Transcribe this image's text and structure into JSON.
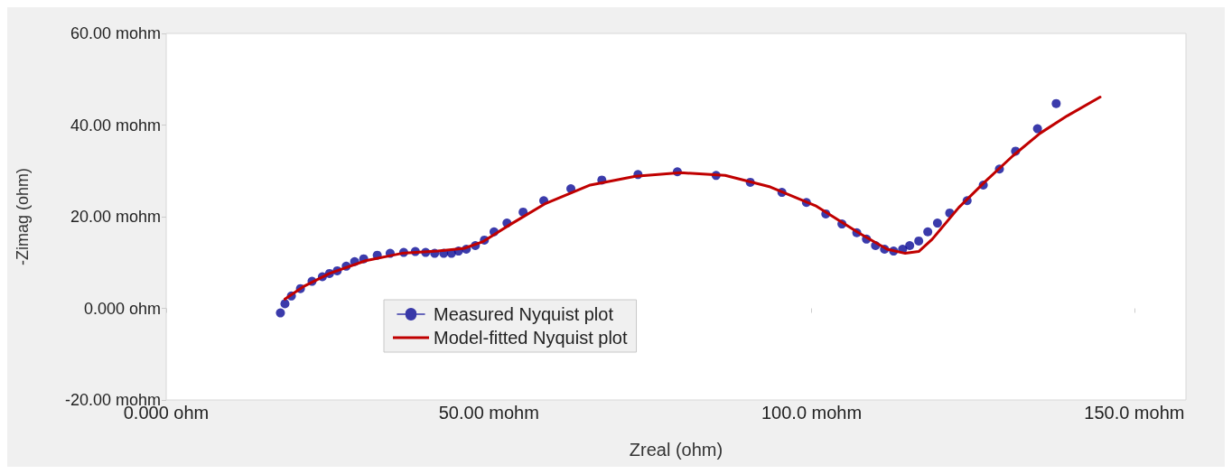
{
  "chart_data": {
    "type": "scatter",
    "xlabel": "Zreal (ohm)",
    "ylabel": "-Zimag (ohm)",
    "xlim": [
      0,
      158
    ],
    "ylim": [
      -20,
      60
    ],
    "xticks": [
      {
        "value": 0,
        "label": "0.000 ohm"
      },
      {
        "value": 50,
        "label": "50.00 mohm"
      },
      {
        "value": 100,
        "label": "100.0 mohm"
      },
      {
        "value": 150,
        "label": "150.0 mohm"
      }
    ],
    "yticks": [
      {
        "value": -20,
        "label": "-20.00 mohm"
      },
      {
        "value": 0,
        "label": "0.000 ohm"
      },
      {
        "value": 20,
        "label": "20.00 mohm"
      },
      {
        "value": 40,
        "label": "40.00 mohm"
      },
      {
        "value": 60,
        "label": "60.00 mohm"
      }
    ],
    "grid": false,
    "legend": "bottom left",
    "series": [
      {
        "name": "Measured Nyquist plot",
        "type": "scatter",
        "marker": "circle",
        "color": "#0a0a96",
        "x": [
          17.7,
          18.4,
          19.4,
          20.8,
          22.6,
          24.2,
          25.3,
          26.5,
          27.9,
          29.2,
          30.6,
          32.7,
          34.7,
          36.8,
          38.6,
          40.2,
          41.6,
          43.0,
          44.2,
          45.3,
          46.5,
          47.9,
          49.3,
          50.8,
          52.8,
          55.3,
          58.5,
          62.7,
          67.5,
          73.1,
          79.2,
          85.2,
          90.5,
          95.4,
          99.2,
          102.2,
          104.7,
          107.0,
          108.5,
          109.9,
          111.3,
          112.7,
          114.1,
          115.2,
          116.6,
          118.0,
          119.5,
          121.4,
          124.1,
          126.6,
          129.1,
          131.6,
          135.0,
          137.9
        ],
        "values": [
          -1.0,
          1.0,
          2.7,
          4.3,
          5.9,
          6.9,
          7.6,
          8.2,
          9.2,
          10.2,
          10.8,
          11.6,
          12.0,
          12.2,
          12.4,
          12.2,
          12.0,
          12.0,
          12.0,
          12.5,
          12.9,
          13.7,
          14.9,
          16.7,
          18.6,
          21.0,
          23.5,
          26.1,
          28.0,
          29.2,
          29.8,
          29.0,
          27.5,
          25.3,
          23.1,
          20.6,
          18.4,
          16.5,
          15.1,
          13.7,
          12.9,
          12.5,
          12.9,
          13.7,
          14.7,
          16.7,
          18.6,
          20.8,
          23.5,
          26.9,
          30.4,
          34.3,
          39.2,
          44.7
        ]
      },
      {
        "name": "Model-fitted Nyquist plot",
        "type": "line",
        "marker": "none",
        "line_style": "solid",
        "color": "#c00000",
        "x": [
          18.4,
          21.2,
          25.3,
          30.9,
          36.5,
          42.1,
          46.2,
          49.0,
          53.2,
          58.8,
          65.7,
          72.7,
          79.7,
          86.6,
          93.6,
          100.6,
          107.5,
          111.7,
          114.5,
          116.6,
          118.7,
          122.8,
          127.0,
          131.2,
          135.4,
          139.6,
          144.7
        ],
        "values": [
          2.0,
          4.7,
          7.6,
          10.4,
          12.0,
          12.5,
          13.1,
          14.5,
          18.2,
          22.9,
          26.9,
          28.8,
          29.6,
          29.0,
          26.5,
          22.4,
          16.3,
          12.9,
          12.0,
          12.4,
          15.1,
          22.0,
          27.8,
          33.3,
          38.2,
          42.0,
          46.1
        ]
      }
    ]
  }
}
